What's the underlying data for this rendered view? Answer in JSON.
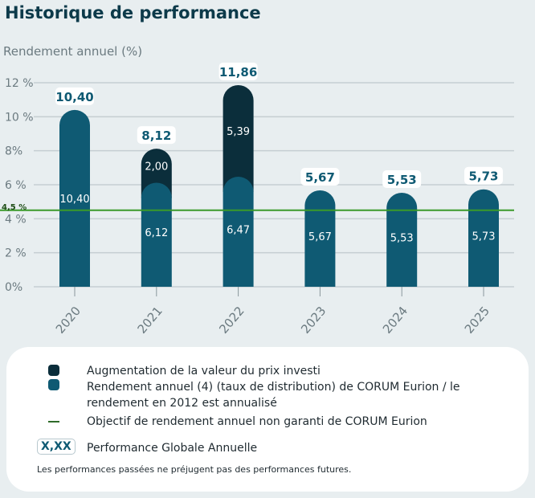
{
  "title": "Historique de performance",
  "chart_data": {
    "type": "bar",
    "stacked": true,
    "ylabel": "Rendement annuel (%)",
    "ylim": [
      0,
      12
    ],
    "yticks": [
      "0%",
      "2 %",
      "4 %",
      "6 %",
      "8%",
      "10 %",
      "12 %"
    ],
    "categories": [
      "2020",
      "2021",
      "2022",
      "2023",
      "2024",
      "2025"
    ],
    "series": [
      {
        "name": "Rendement annuel (4) (taux de distribution) de CORUM Eurion / le rendement en 2012 est annualisé",
        "color": "#0f5a73",
        "values": [
          10.4,
          6.12,
          6.47,
          5.67,
          5.53,
          5.73
        ],
        "labels": [
          "10,40",
          "6,12",
          "6,47",
          "5,67",
          "5,53",
          "5,73"
        ]
      },
      {
        "name": "Augmentation de la valeur du prix investi",
        "color": "#0b2e3b",
        "values": [
          0,
          2.0,
          5.39,
          0,
          0,
          0
        ],
        "labels": [
          "",
          "2,00",
          "5,39",
          "",
          "",
          ""
        ]
      }
    ],
    "totals": [
      "10,40",
      "8,12",
      "11,86",
      "5,67",
      "5,53",
      "5,73"
    ],
    "target": {
      "value": 4.5,
      "label": "4,5 %",
      "color": "#3a9a2a"
    },
    "grid": true
  },
  "legend": {
    "items": [
      "Augmentation de la valeur du prix investi",
      "Rendement annuel (4) (taux de distribution) de CORUM Eurion / le rendement en 2012 est annualisé",
      "Objectif de rendement annuel non garanti de CORUM Eurion",
      "Performance Globale Annuelle"
    ],
    "badge": "X,XX",
    "note": "Les performances passées ne préjugent pas des performances futures."
  }
}
